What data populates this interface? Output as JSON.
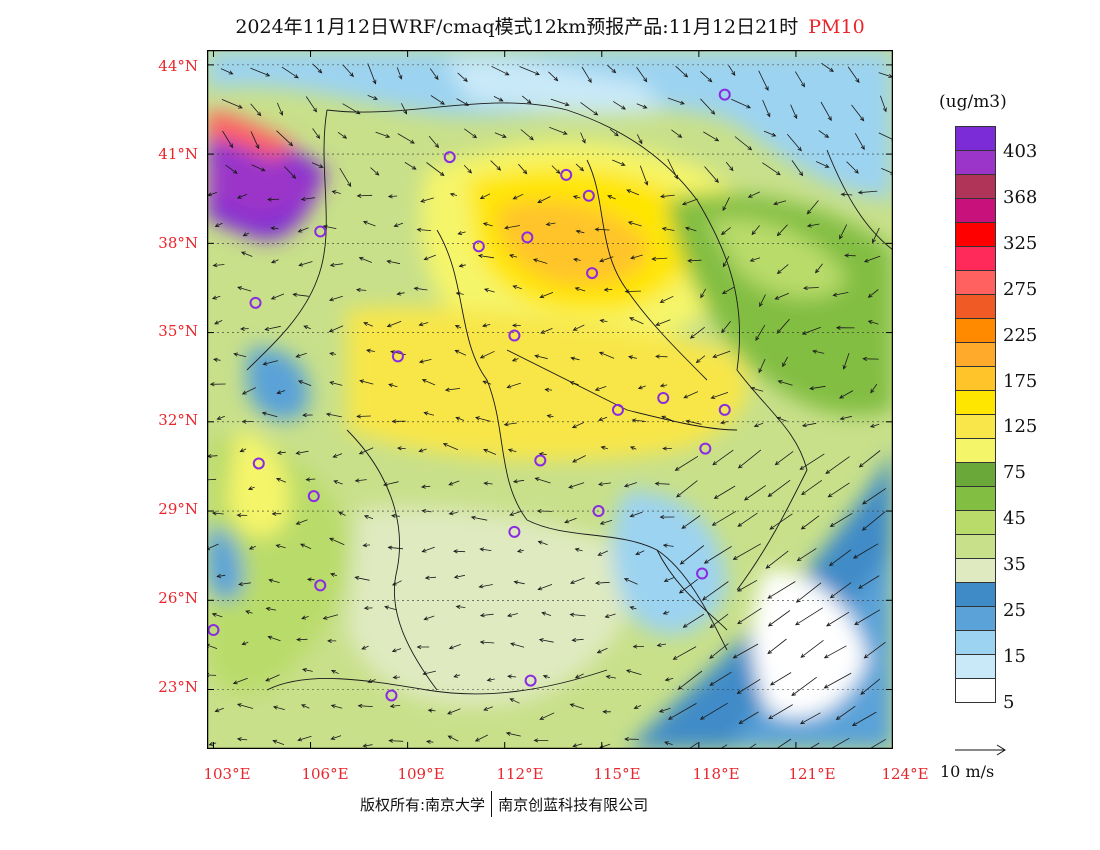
{
  "title": {
    "main": "2024年11月12日WRF/cmaq模式12km预报产品:11月12日21时",
    "pollutant": "PM10"
  },
  "map": {
    "lat_labels": [
      "44°N",
      "41°N",
      "38°N",
      "35°N",
      "32°N",
      "29°N",
      "26°N",
      "23°N"
    ],
    "lon_labels": [
      "103°E",
      "106°E",
      "109°E",
      "112°E",
      "115°E",
      "118°E",
      "121°E",
      "124°E"
    ],
    "lat_values": [
      44,
      41,
      38,
      35,
      32,
      29,
      26,
      23
    ],
    "lon_values": [
      103,
      106,
      109,
      112,
      115,
      118,
      121,
      124
    ],
    "lon_range": [
      102.8,
      124.0
    ],
    "lat_range": [
      21.0,
      44.5
    ],
    "label_color": "#e8262c",
    "station_color": "#8a2be2",
    "stations": [
      {
        "lon": 118.8,
        "lat": 43.0
      },
      {
        "lon": 110.3,
        "lat": 40.9
      },
      {
        "lon": 113.9,
        "lat": 40.3
      },
      {
        "lon": 114.6,
        "lat": 39.6
      },
      {
        "lon": 106.3,
        "lat": 38.4
      },
      {
        "lon": 111.2,
        "lat": 37.9
      },
      {
        "lon": 112.7,
        "lat": 38.2
      },
      {
        "lon": 114.7,
        "lat": 37.0
      },
      {
        "lon": 104.3,
        "lat": 36.0
      },
      {
        "lon": 112.3,
        "lat": 34.9
      },
      {
        "lon": 108.7,
        "lat": 34.2
      },
      {
        "lon": 115.5,
        "lat": 32.4
      },
      {
        "lon": 116.9,
        "lat": 32.8
      },
      {
        "lon": 118.8,
        "lat": 32.4
      },
      {
        "lon": 118.2,
        "lat": 31.1
      },
      {
        "lon": 104.4,
        "lat": 30.6
      },
      {
        "lon": 113.1,
        "lat": 30.7
      },
      {
        "lon": 106.1,
        "lat": 29.5
      },
      {
        "lon": 114.9,
        "lat": 29.0
      },
      {
        "lon": 112.3,
        "lat": 28.3
      },
      {
        "lon": 106.3,
        "lat": 26.5
      },
      {
        "lon": 118.1,
        "lat": 26.9
      },
      {
        "lon": 103.0,
        "lat": 25.0
      },
      {
        "lon": 108.5,
        "lat": 22.8
      },
      {
        "lon": 112.8,
        "lat": 23.3
      }
    ]
  },
  "legend": {
    "unit": "(ug/m3)",
    "colors": [
      "#7b2cd6",
      "#9b35c9",
      "#b03358",
      "#c8117b",
      "#ff0000",
      "#ff2a5a",
      "#ff6060",
      "#f05a24",
      "#ff8a00",
      "#ffaa2a",
      "#ffc42a",
      "#ffe600",
      "#f8e64a",
      "#f5f56a",
      "#6aa83a",
      "#82be42",
      "#b9db6a",
      "#c8e08a",
      "#dfeac0",
      "#3f8bc8",
      "#5aa2d8",
      "#9cd3f0",
      "#c9e9f8",
      "#ffffff"
    ],
    "labels": [
      "403",
      "368",
      "325",
      "275",
      "225",
      "175",
      "125",
      "75",
      "45",
      "35",
      "25",
      "15",
      "5"
    ]
  },
  "wind_reference": "10 m/s",
  "credit": {
    "left": "版权所有:南京大学",
    "right": "南京创蓝科技有限公司"
  }
}
